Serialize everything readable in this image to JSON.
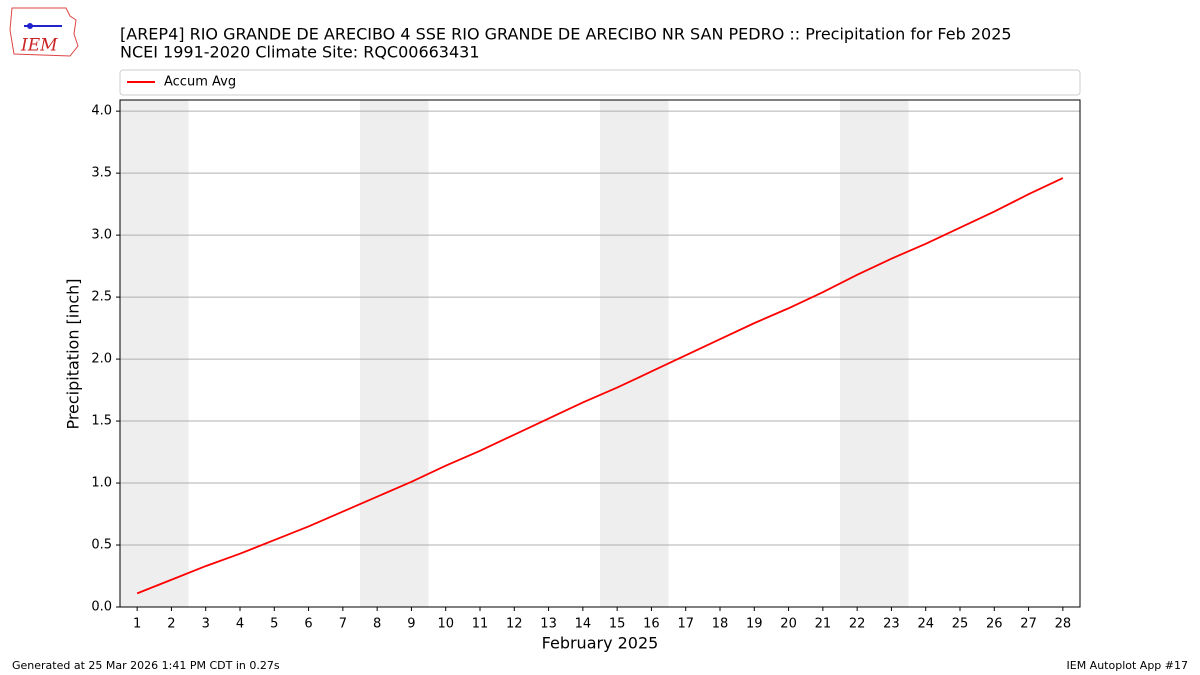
{
  "logo_text": "IEM",
  "footer": {
    "left": "Generated at 25 Mar 2026 1:41 PM CDT in 0.27s",
    "right": "IEM Autoplot App #17"
  },
  "chart_data": {
    "type": "line",
    "title": "[AREP4] RIO GRANDE DE ARECIBO 4 SSE RIO GRANDE DE ARECIBO NR SAN PEDRO :: Precipitation for Feb 2025",
    "subtitle": "NCEI 1991-2020 Climate Site: RQC00663431",
    "x_label": "February 2025",
    "y_label": "Precipitation [inch]",
    "x": [
      1,
      2,
      3,
      4,
      5,
      6,
      7,
      8,
      9,
      10,
      11,
      12,
      13,
      14,
      15,
      16,
      17,
      18,
      19,
      20,
      21,
      22,
      23,
      24,
      25,
      26,
      27,
      28
    ],
    "series": [
      {
        "name": "Accum Avg",
        "color": "#ff0000",
        "values": [
          0.11,
          0.22,
          0.33,
          0.43,
          0.54,
          0.65,
          0.77,
          0.89,
          1.01,
          1.14,
          1.26,
          1.39,
          1.52,
          1.65,
          1.77,
          1.9,
          2.03,
          2.16,
          2.29,
          2.41,
          2.54,
          2.68,
          2.81,
          2.93,
          3.06,
          3.19,
          3.33,
          3.46
        ]
      }
    ],
    "xlim": [
      0.5,
      28.5
    ],
    "xticks": [
      1,
      2,
      3,
      4,
      5,
      6,
      7,
      8,
      9,
      10,
      11,
      12,
      13,
      14,
      15,
      16,
      17,
      18,
      19,
      20,
      21,
      22,
      23,
      24,
      25,
      26,
      27,
      28
    ],
    "ylim": [
      0,
      4.09
    ],
    "yticks": [
      {
        "value": 0,
        "label": "0.0"
      },
      {
        "value": 0.5,
        "label": "0.5"
      },
      {
        "value": 1,
        "label": "1.0"
      },
      {
        "value": 1.5,
        "label": "1.5"
      },
      {
        "value": 2,
        "label": "2.0"
      },
      {
        "value": 2.5,
        "label": "2.5"
      },
      {
        "value": 3,
        "label": "3.0"
      },
      {
        "value": 3.5,
        "label": "3.5"
      },
      {
        "value": 4,
        "label": "4.0"
      }
    ],
    "shaded_spans": [
      [
        0.5,
        2.5
      ],
      [
        7.5,
        9.5
      ],
      [
        14.5,
        16.5
      ],
      [
        21.5,
        23.5
      ]
    ],
    "shade_color": "#eeeeee",
    "grid": true,
    "legend": "top"
  }
}
